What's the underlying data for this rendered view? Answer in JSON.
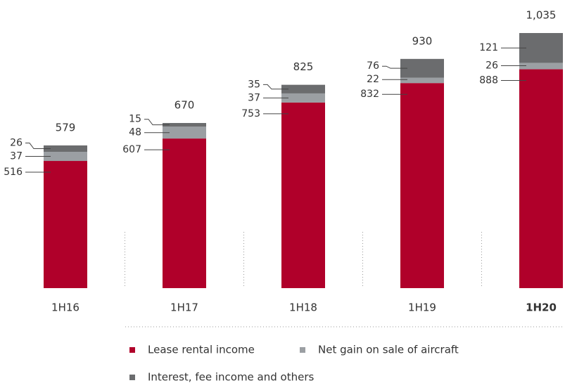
{
  "chart_data": {
    "type": "stacked_bar",
    "categories": [
      "1H16",
      "1H17",
      "1H18",
      "1H19",
      "1H20"
    ],
    "series": [
      {
        "name": "Lease rental income",
        "color": "#b0002a",
        "values": [
          516,
          607,
          753,
          832,
          888
        ]
      },
      {
        "name": "Net gain on sale of aircraft",
        "color": "#9b9fa3",
        "values": [
          37,
          48,
          37,
          22,
          26
        ]
      },
      {
        "name": "Interest, fee income and others",
        "color": "#6b6c6e",
        "values": [
          26,
          15,
          35,
          76,
          121
        ]
      }
    ],
    "totals": [
      579,
      670,
      825,
      930,
      1035
    ],
    "total_labels": [
      "579",
      "670",
      "825",
      "930",
      "1,035"
    ]
  }
}
